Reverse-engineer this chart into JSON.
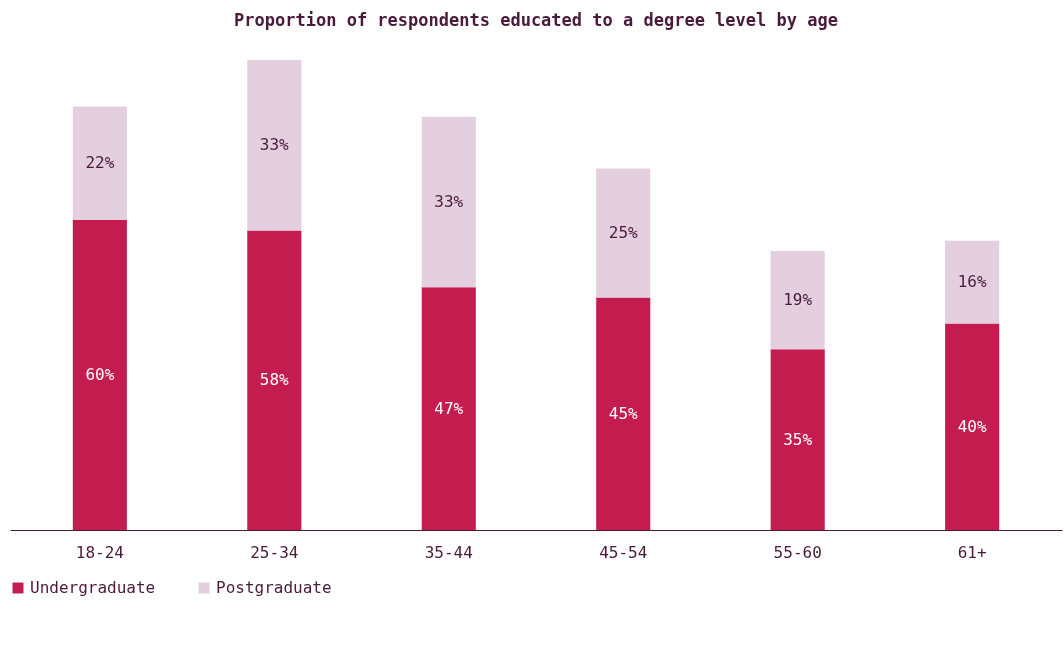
{
  "chart_data": {
    "type": "bar",
    "title": "Proportion of respondents educated to a degree level by age",
    "categories": [
      "18-24",
      "25-34",
      "35-44",
      "45-54",
      "55-60",
      "61+"
    ],
    "stacked": true,
    "legend": "bottom",
    "series": [
      {
        "name": "Undergraduate",
        "color": "#c41c4f",
        "values": [
          60,
          58,
          47,
          45,
          35,
          40
        ],
        "value_labels": [
          "60%",
          "58%",
          "47%",
          "45%",
          "35%",
          "40%"
        ]
      },
      {
        "name": "Postgraduate",
        "color": "#e4cfdf",
        "values": [
          22,
          33,
          33,
          25,
          19,
          16
        ],
        "value_labels": [
          "22%",
          "33%",
          "33%",
          "25%",
          "19%",
          "16%"
        ]
      }
    ]
  }
}
